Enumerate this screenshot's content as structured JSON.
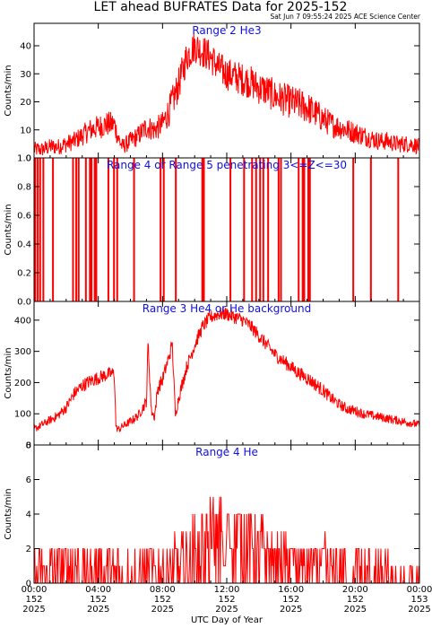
{
  "header": {
    "title": "LET ahead BUFRATES Data for 2025-152",
    "timestamp": "Sat Jun  7 09:55:24 2025 ACE Science Center"
  },
  "colors": {
    "series": "#ff0000",
    "label": "#1010e0",
    "axes": "#000000"
  },
  "footer": {
    "xlabel": "UTC Day of Year"
  },
  "x_ticks": [
    {
      "time": "00:00",
      "doy": "152",
      "year": "2025"
    },
    {
      "time": "04:00",
      "doy": "152",
      "year": "2025"
    },
    {
      "time": "08:00",
      "doy": "152",
      "year": "2025"
    },
    {
      "time": "12:00",
      "doy": "152",
      "year": "2025"
    },
    {
      "time": "16:00",
      "doy": "152",
      "year": "2025"
    },
    {
      "time": "20:00",
      "doy": "152",
      "year": "2025"
    },
    {
      "time": "00:00",
      "doy": "153",
      "year": "2025"
    }
  ],
  "chart_data": [
    {
      "type": "line",
      "title": "Range 2 He3",
      "ylabel": "Counts/min",
      "ylim": [
        0,
        48
      ],
      "yticks": [
        "0",
        "10",
        "20",
        "30",
        "40"
      ],
      "xlim": [
        0,
        24
      ],
      "series": [
        {
          "x": [
            0,
            0.5,
            1,
            1.5,
            2,
            2.5,
            3,
            3.5,
            4,
            4.5,
            5,
            5.25,
            5.5,
            6,
            6.5,
            7,
            7.5,
            8,
            8.5,
            9,
            9.5,
            10,
            10.5,
            11,
            11.5,
            12,
            12.5,
            13,
            13.5,
            14,
            14.5,
            15,
            15.5,
            16,
            16.5,
            17,
            17.5,
            18,
            18.5,
            19,
            19.5,
            20,
            20.5,
            21,
            21.5,
            22,
            22.5,
            23,
            23.5,
            24
          ],
          "y": [
            3,
            3,
            4,
            4,
            5,
            6,
            8,
            10,
            11,
            12,
            12,
            7,
            4,
            6,
            8,
            11,
            10,
            12,
            18,
            26,
            36,
            40,
            38,
            36,
            32,
            30,
            29,
            28,
            27,
            25,
            24,
            22,
            21,
            20,
            19,
            18,
            16,
            14,
            12,
            11,
            10,
            9,
            8,
            7,
            6,
            6,
            5,
            5,
            5,
            4
          ],
          "noise": 6
        }
      ]
    },
    {
      "type": "line",
      "title": "Range 4 or Range 5 penetrating 3<=Z<=30",
      "ylabel": "Counts/min",
      "ylim": [
        0,
        1
      ],
      "yticks": [
        "0.0",
        "0.2",
        "0.4",
        "0.6",
        "0.8",
        "1.0"
      ],
      "xlim": [
        0,
        24
      ],
      "series": [
        {
          "spikes_x": [
            0.05,
            0.2,
            0.35,
            0.55,
            1.15,
            2.4,
            2.6,
            2.75,
            3.2,
            3.45,
            3.55,
            3.75,
            3.85,
            4.6,
            4.95,
            5.15,
            6.2,
            7.85,
            8.05,
            8.8,
            10.45,
            10.55,
            12.2,
            13.05,
            13.55,
            13.8,
            14.05,
            14.25,
            14.55,
            15.2,
            15.35,
            16.45,
            16.7,
            16.8,
            17.05,
            17.15,
            19.85,
            20.95,
            22.65
          ],
          "baseline": 0,
          "peak": 1
        }
      ]
    },
    {
      "type": "line",
      "title": "Range 3 He4 or He background",
      "ylabel": "Counts/min",
      "ylim": [
        0,
        460
      ],
      "yticks": [
        "0",
        "100",
        "200",
        "300",
        "400"
      ],
      "xlim": [
        0,
        24
      ],
      "series": [
        {
          "x": [
            0,
            0.5,
            1,
            1.5,
            2,
            2.5,
            3,
            3.5,
            4,
            4.5,
            5,
            5.1,
            5.3,
            5.5,
            6,
            6.5,
            7,
            7.1,
            7.3,
            7.5,
            7.7,
            8,
            8.5,
            8.6,
            8.8,
            9,
            9.5,
            10,
            10.5,
            11,
            11.5,
            12,
            12.5,
            13,
            13.5,
            14,
            14.5,
            15,
            15.5,
            16,
            16.5,
            17,
            17.5,
            18,
            18.5,
            19,
            19.5,
            20,
            20.5,
            21,
            21.5,
            22,
            22.5,
            23,
            23.5,
            24
          ],
          "y": [
            50,
            65,
            80,
            95,
            120,
            165,
            190,
            205,
            215,
            225,
            230,
            55,
            50,
            60,
            75,
            95,
            140,
            330,
            110,
            90,
            180,
            210,
            300,
            330,
            95,
            150,
            250,
            320,
            380,
            410,
            420,
            420,
            410,
            400,
            380,
            350,
            320,
            290,
            270,
            250,
            230,
            215,
            195,
            175,
            150,
            130,
            115,
            110,
            100,
            95,
            90,
            85,
            80,
            75,
            70,
            65
          ],
          "noise": 22
        }
      ]
    },
    {
      "type": "line",
      "title": "Range 4 He",
      "ylabel": "Counts/min",
      "ylim": [
        0,
        8
      ],
      "yticks": [
        "0",
        "2",
        "4",
        "6",
        "8"
      ],
      "xlim": [
        0,
        24
      ],
      "series": [
        {
          "x": [
            0,
            2,
            4,
            6,
            8,
            9,
            10,
            10.5,
            11,
            11.5,
            12,
            12.5,
            13,
            13.5,
            14,
            15,
            16,
            17,
            18,
            19,
            20,
            21,
            22,
            24
          ],
          "y": [
            0.7,
            0.9,
            1.0,
            0.6,
            0.9,
            1.0,
            1.8,
            2.2,
            2.6,
            2.9,
            3.1,
            3.0,
            2.6,
            2.2,
            1.8,
            1.5,
            1.3,
            1.1,
            1.0,
            0.8,
            0.7,
            0.6,
            0.5,
            0.4
          ],
          "discrete": true
        }
      ]
    }
  ]
}
